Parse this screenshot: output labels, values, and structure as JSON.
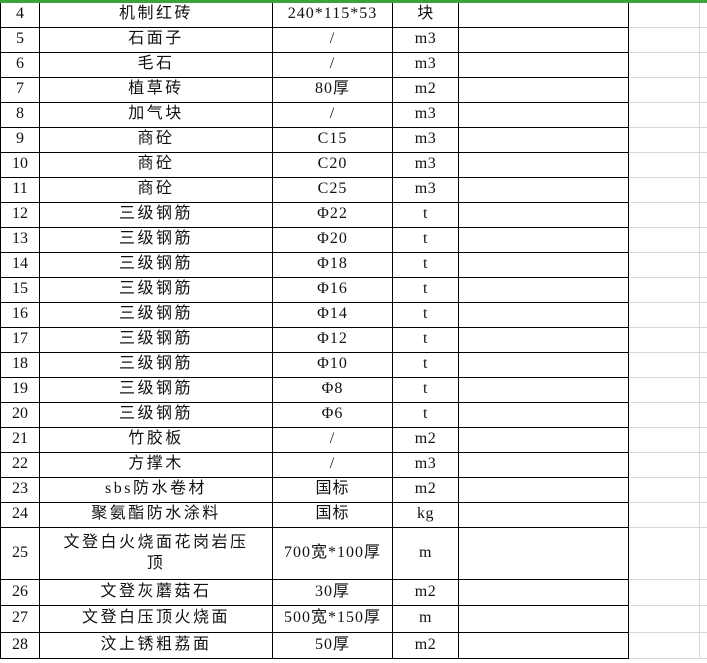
{
  "colors": {
    "selection_green": "#3ba33b",
    "table_border": "#000000",
    "gridline_gray": "#d8d8d8",
    "background": "#ffffff"
  },
  "table": {
    "rows": [
      {
        "num": "4",
        "name": "机制红砖",
        "spec": "240*115*53",
        "unit": "块"
      },
      {
        "num": "5",
        "name": "石面子",
        "spec": "/",
        "unit": "m3"
      },
      {
        "num": "6",
        "name": "毛石",
        "spec": "/",
        "unit": "m3"
      },
      {
        "num": "7",
        "name": "植草砖",
        "spec": "80厚",
        "unit": "m2"
      },
      {
        "num": "8",
        "name": "加气块",
        "spec": "/",
        "unit": "m3"
      },
      {
        "num": "9",
        "name": "商砼",
        "spec": "C15",
        "unit": "m3"
      },
      {
        "num": "10",
        "name": "商砼",
        "spec": "C20",
        "unit": "m3"
      },
      {
        "num": "11",
        "name": "商砼",
        "spec": "C25",
        "unit": "m3"
      },
      {
        "num": "12",
        "name": "三级钢筋",
        "spec": "Φ22",
        "unit": "t"
      },
      {
        "num": "13",
        "name": "三级钢筋",
        "spec": "Φ20",
        "unit": "t"
      },
      {
        "num": "14",
        "name": "三级钢筋",
        "spec": "Φ18",
        "unit": "t"
      },
      {
        "num": "15",
        "name": "三级钢筋",
        "spec": "Φ16",
        "unit": "t"
      },
      {
        "num": "16",
        "name": "三级钢筋",
        "spec": "Φ14",
        "unit": "t"
      },
      {
        "num": "17",
        "name": "三级钢筋",
        "spec": "Φ12",
        "unit": "t"
      },
      {
        "num": "18",
        "name": "三级钢筋",
        "spec": "Φ10",
        "unit": "t"
      },
      {
        "num": "19",
        "name": "三级钢筋",
        "spec": "Φ8",
        "unit": "t"
      },
      {
        "num": "20",
        "name": "三级钢筋",
        "spec": "Φ6",
        "unit": "t"
      },
      {
        "num": "21",
        "name": "竹胶板",
        "spec": "/",
        "unit": "m2"
      },
      {
        "num": "22",
        "name": "方撑木",
        "spec": "/",
        "unit": "m3"
      },
      {
        "num": "23",
        "name": "sbs防水卷材",
        "spec": "国标",
        "unit": "m2"
      },
      {
        "num": "24",
        "name": "聚氨酯防水涂料",
        "spec": "国标",
        "unit": "kg"
      },
      {
        "num": "25",
        "name": "文登白火烧面花岗岩压顶",
        "spec": "700宽*100厚",
        "unit": "m"
      },
      {
        "num": "26",
        "name": "文登灰蘑菇石",
        "spec": "30厚",
        "unit": "m2"
      },
      {
        "num": "27",
        "name": "文登白压顶火烧面",
        "spec": "500宽*150厚",
        "unit": "m"
      },
      {
        "num": "28",
        "name": "汶上锈粗荔面",
        "spec": "50厚",
        "unit": "m2"
      }
    ]
  }
}
